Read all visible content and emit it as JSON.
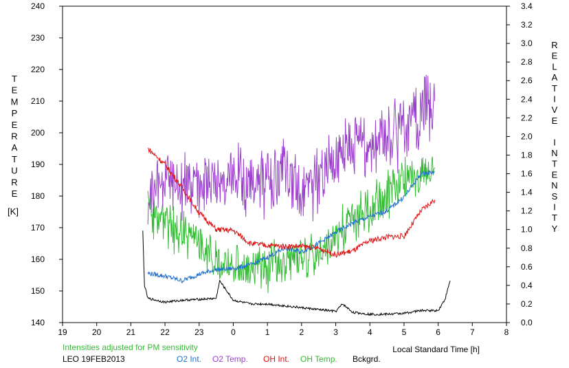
{
  "chart_data": {
    "type": "line",
    "site_date": "LEO 19FEB2013",
    "note": "Intensities adjusted for PM sensitivity",
    "xlabel": "Local Standard Time [h]",
    "ylabel_left_letters": [
      "T",
      "E",
      "M",
      "P",
      "E",
      "R",
      "A",
      "T",
      "U",
      "R",
      "E"
    ],
    "ylabel_left_unit": "[K]",
    "ylabel_right_letters": [
      "R",
      "E",
      "L",
      "A",
      "T",
      "I",
      "V",
      "E",
      "",
      "I",
      "N",
      "T",
      "E",
      "N",
      "S",
      "I",
      "T",
      "Y"
    ],
    "x_ticks": [
      "19",
      "20",
      "21",
      "22",
      "23",
      "0",
      "1",
      "2",
      "3",
      "4",
      "5",
      "6",
      "7",
      "8"
    ],
    "xlim": [
      19,
      32
    ],
    "y_left_ticks": [
      "140",
      "150",
      "160",
      "170",
      "180",
      "190",
      "200",
      "210",
      "220",
      "230",
      "240"
    ],
    "ylim_left": [
      140,
      240
    ],
    "y_right_ticks": [
      "0.0",
      "0.2",
      "0.4",
      "0.6",
      "0.8",
      "1.0",
      "1.2",
      "1.4",
      "1.6",
      "1.8",
      "2.0",
      "2.2",
      "2.4",
      "2.6",
      "2.8",
      "3.0",
      "3.2",
      "3.4"
    ],
    "ylim_right": [
      0,
      3.4
    ],
    "grid": false,
    "series": [
      {
        "name": "O2 Int.",
        "color": "#1e6fd0",
        "axis": "right",
        "x": [
          21.5,
          22.0,
          22.5,
          23.0,
          23.5,
          24.0,
          24.5,
          25.0,
          25.5,
          26.0,
          26.5,
          27.0,
          27.5,
          28.0,
          28.5,
          29.0,
          29.5,
          29.9
        ],
        "y": [
          0.53,
          0.5,
          0.45,
          0.52,
          0.57,
          0.58,
          0.62,
          0.7,
          0.8,
          0.76,
          0.85,
          0.97,
          1.07,
          1.14,
          1.2,
          1.35,
          1.6,
          1.62
        ]
      },
      {
        "name": "O2 Temp.",
        "color": "#9b40cc",
        "axis": "left",
        "x": [
          21.5,
          22.0,
          22.5,
          23.0,
          23.5,
          24.0,
          24.5,
          25.0,
          25.5,
          26.0,
          26.5,
          27.0,
          27.5,
          28.0,
          28.5,
          29.0,
          29.5,
          29.9
        ],
        "y": [
          180,
          185,
          184,
          183,
          182,
          188,
          185,
          184,
          186,
          183,
          185,
          191,
          196,
          198,
          199,
          201,
          207,
          210
        ]
      },
      {
        "name": "OH Int.",
        "color": "#dd1111",
        "axis": "right",
        "x": [
          21.5,
          22.0,
          22.5,
          23.0,
          23.5,
          24.0,
          24.5,
          25.0,
          25.5,
          26.0,
          26.5,
          27.0,
          27.5,
          28.0,
          28.5,
          29.0,
          29.5,
          29.9
        ],
        "y": [
          1.87,
          1.7,
          1.45,
          1.18,
          1.0,
          0.99,
          0.85,
          0.83,
          0.82,
          0.82,
          0.8,
          0.73,
          0.77,
          0.88,
          0.92,
          0.93,
          1.2,
          1.32
        ]
      },
      {
        "name": "OH Temp.",
        "color": "#33bb33",
        "axis": "left",
        "x": [
          21.5,
          22.0,
          22.5,
          23.0,
          23.5,
          24.0,
          24.5,
          25.0,
          25.5,
          26.0,
          26.5,
          27.0,
          27.5,
          28.0,
          28.5,
          29.0,
          29.5,
          29.9
        ],
        "y": [
          175,
          172,
          168,
          165,
          160,
          158,
          157,
          157,
          160,
          162,
          161,
          168,
          173,
          176,
          180,
          185,
          186,
          189
        ]
      },
      {
        "name": "Bckgrd.",
        "color": "#000000",
        "axis": "right",
        "x": [
          21.35,
          21.4,
          21.5,
          22.0,
          22.5,
          23.0,
          23.5,
          23.6,
          24.0,
          24.5,
          25.0,
          25.5,
          26.0,
          26.5,
          27.0,
          27.2,
          27.5,
          28.0,
          28.5,
          29.0,
          29.5,
          30.0,
          30.2,
          30.35
        ],
        "y": [
          0.98,
          0.4,
          0.26,
          0.22,
          0.24,
          0.25,
          0.26,
          0.45,
          0.24,
          0.2,
          0.2,
          0.18,
          0.16,
          0.14,
          0.12,
          0.2,
          0.11,
          0.09,
          0.09,
          0.1,
          0.13,
          0.13,
          0.25,
          0.45
        ]
      }
    ]
  }
}
